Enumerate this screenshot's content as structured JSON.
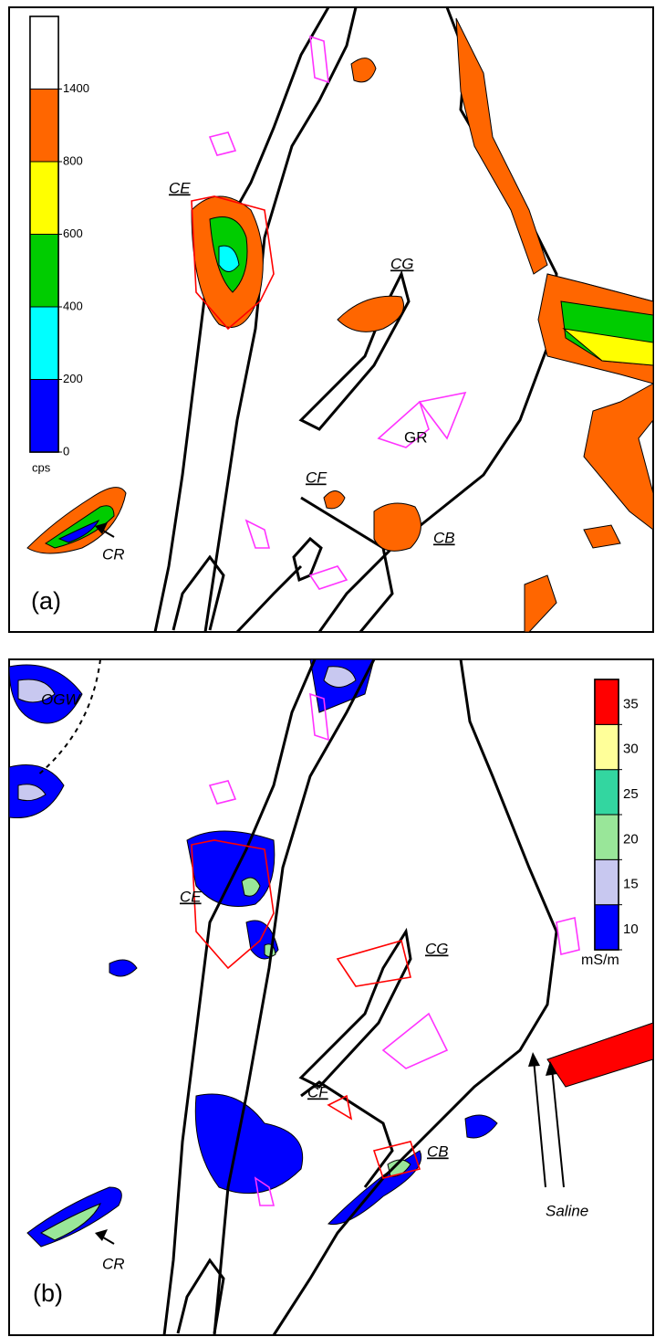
{
  "panels": [
    {
      "label": "(a)",
      "legend": {
        "unit": "cps",
        "ticks": [
          0,
          200,
          400,
          600,
          800,
          1400
        ],
        "colors": [
          "#0000ff",
          "#00ffff",
          "#00cc00",
          "#ffff00",
          "#ff6600",
          "#ffffff"
        ]
      },
      "annotations": [
        "CE",
        "CG",
        "GR",
        "CF",
        "CB",
        "CR"
      ]
    },
    {
      "label": "(b)",
      "legend": {
        "unit": "mS/m",
        "ticks": [
          10,
          15,
          20,
          25,
          30,
          35
        ],
        "colors": [
          "#0000ff",
          "#c8c8f0",
          "#99e699",
          "#33d6a0",
          "#ffff99",
          "#ff0000"
        ]
      },
      "annotations": [
        "OGW",
        "CE",
        "CG",
        "CF",
        "CB",
        "Saline",
        "CR"
      ]
    }
  ]
}
